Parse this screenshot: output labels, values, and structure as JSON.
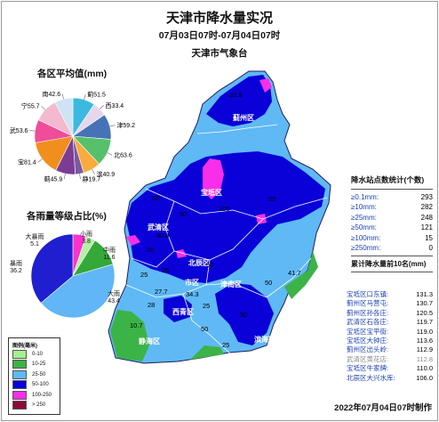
{
  "header": {
    "title": "天津市降水量实况",
    "subtitle": "07月03日07时-07月04日07时",
    "org": "天津市气象台"
  },
  "avg_section": {
    "title": "各区平均值(mm)",
    "slices": [
      {
        "name": "蓟",
        "value": 51.5,
        "label": "蓟51.5",
        "color": "#3cb9e0"
      },
      {
        "name": "西",
        "value": 33.4,
        "label": "西33.4",
        "color": "#e6d8ec"
      },
      {
        "name": "津",
        "value": 59.2,
        "label": "津59.2",
        "color": "#4673b8"
      },
      {
        "name": "北",
        "value": 63.6,
        "label": "北63.6",
        "color": "#57c06a"
      },
      {
        "name": "滨",
        "value": 40.9,
        "label": "滨40.9",
        "color": "#f9ab3c"
      },
      {
        "name": "静",
        "value": 19.7,
        "label": "静19.7",
        "color": "#7a5a9e"
      },
      {
        "name": "蓟2",
        "value": 45.9,
        "label": "蓟45.9",
        "color": "#7c3c96"
      },
      {
        "name": "宝",
        "value": 81.4,
        "label": "宝81.4",
        "color": "#f08f1e"
      },
      {
        "name": "武",
        "value": 53.6,
        "label": "武53.6",
        "color": "#ef4d9a"
      },
      {
        "name": "宁",
        "value": 55.7,
        "label": "宁55.7",
        "color": "#f4b8cf"
      },
      {
        "name": "南",
        "value": 42.6,
        "label": "南42.6",
        "color": "#cfe3f4"
      }
    ]
  },
  "grade_section": {
    "title": "各雨量等级占比(%)",
    "slices": [
      {
        "name": "大暴雨",
        "value": 5.1,
        "color": "#ff33cc"
      },
      {
        "name": "小雨",
        "value": 3.8,
        "color": "#b5f0a4"
      },
      {
        "name": "中雨",
        "value": 11.6,
        "color": "#35a83a"
      },
      {
        "name": "大雨",
        "value": 43.4,
        "color": "#60b6f6"
      },
      {
        "name": "暴雨",
        "value": 36.2,
        "color": "#1f1fd0"
      }
    ],
    "labels": {
      "heavy_storm": "大暴雨",
      "heavy_storm_val": "5.1",
      "light": "小雨",
      "light_val": "3.8",
      "moderate": "中雨",
      "moderate_val": "11.6",
      "storm": "暴雨",
      "storm_val": "36.2",
      "heavy": "大雨",
      "heavy_val": "43.4"
    }
  },
  "legend": {
    "title": "图例(毫米)",
    "items": [
      {
        "label": "0-10",
        "color": "#a5f08f"
      },
      {
        "label": "10-25",
        "color": "#3cb346"
      },
      {
        "label": "25-50",
        "color": "#5fb9f5"
      },
      {
        "label": "50-100",
        "color": "#0a00d8"
      },
      {
        "label": "100-250",
        "color": "#f82ee8"
      },
      {
        "label": "> 250",
        "color": "#8a0a3a"
      }
    ]
  },
  "map": {
    "districts": [
      "蓟州区",
      "宝坻区",
      "武清区",
      "北辰区",
      "市区",
      "西青区",
      "津南区",
      "静海区",
      "滨海新区"
    ],
    "values": [
      "32.8",
      "50",
      "100",
      "50",
      "50",
      "40.4",
      "50",
      "25",
      "27.7",
      "34.3",
      "50",
      "25",
      "50",
      "25",
      "10.7",
      "50",
      "41.7",
      "50",
      "25",
      "28"
    ]
  },
  "stats": {
    "title": "降水站点数统计(个数)",
    "rows": [
      {
        "label": "≥0.1mm:",
        "value": "293"
      },
      {
        "label": "≥10mm:",
        "value": "282"
      },
      {
        "label": "≥25mm:",
        "value": "248"
      },
      {
        "label": "≥50mm:",
        "value": "121"
      },
      {
        "label": "≥100mm:",
        "value": "15"
      },
      {
        "label": "≥250mm:",
        "value": "0"
      }
    ]
  },
  "top10": {
    "title": "累计降水量前10名(mm)",
    "rows": [
      {
        "label": "宝坻区口东镇:",
        "value": "131.3"
      },
      {
        "label": "蓟州区马营屯:",
        "value": "130.7"
      },
      {
        "label": "蓟州区孙各庄:",
        "value": "120.5"
      },
      {
        "label": "武清区石各庄:",
        "value": "119.7"
      },
      {
        "label": "宝坻区宝平街:",
        "value": "119.0"
      },
      {
        "label": "宝坻区大钟庄:",
        "value": "113.6"
      },
      {
        "label": "蓟州区出头岭:",
        "value": "112.9"
      },
      {
        "label": "武清区黄花店:",
        "value": "112.8"
      },
      {
        "label": "宝坻区牛家牌:",
        "value": "110.0"
      },
      {
        "label": "北辰区大兴水库:",
        "value": "106.0"
      }
    ]
  },
  "footer": "2022年07月04日07时制作"
}
